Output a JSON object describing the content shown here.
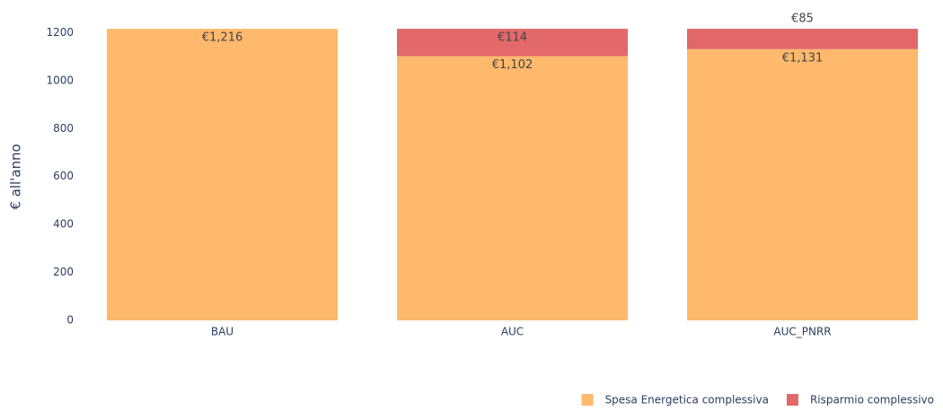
{
  "chart_data": {
    "type": "stacked_bar",
    "y_label": "€ all'anno",
    "categories": [
      "BAU",
      "AUC",
      "AUC_PNRR"
    ],
    "series": [
      {
        "name": "Spesa Energetica complessiva",
        "color": "#feb96c",
        "values": [
          1216,
          1102,
          1131
        ],
        "value_labels": [
          "€1,216",
          "€1,102",
          "€1,131"
        ]
      },
      {
        "name": "Risparmio complessivo",
        "color": "#e2686a",
        "values": [
          null,
          114,
          85
        ],
        "value_labels": [
          null,
          "€114",
          "€85"
        ]
      }
    ],
    "ylim": [
      0,
      1280
    ],
    "yticks": [
      0,
      200,
      400,
      600,
      800,
      1000,
      1200
    ],
    "grid": false,
    "legend": "bottom-right"
  }
}
